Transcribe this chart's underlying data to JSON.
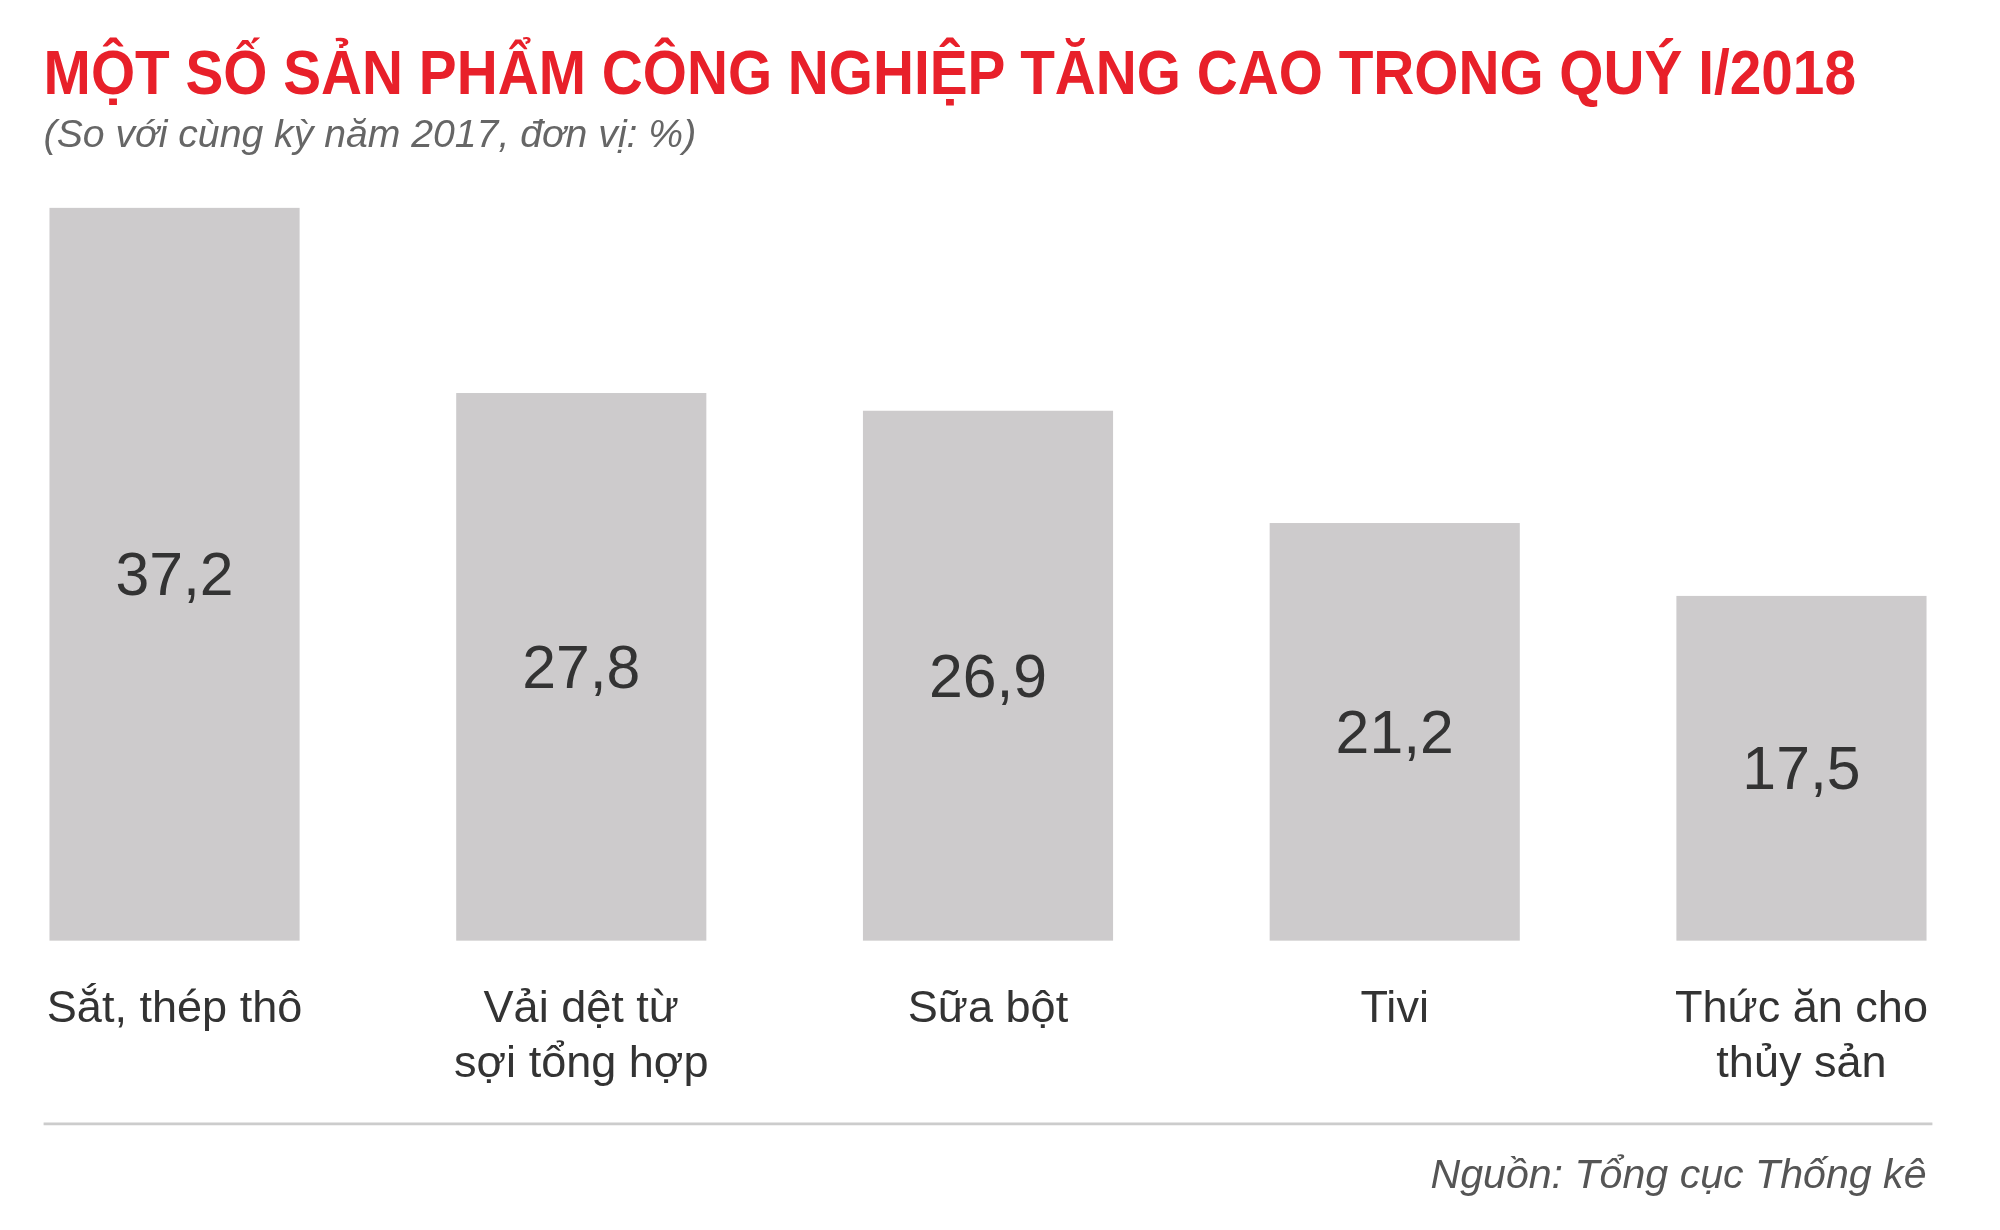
{
  "chart_data": {
    "type": "bar",
    "title": "MỘT SỐ SẢN PHẨM CÔNG NGHIỆP TĂNG CAO TRONG QUÝ I/2018",
    "subtitle": "(So với cùng kỳ năm 2017, đơn vị: %)",
    "categories": [
      "Sắt, thép thô",
      "Vải dệt từ sợi tổng hợp",
      "Sữa bột",
      "Tivi",
      "Thức ăn cho thủy sản"
    ],
    "values": [
      37.2,
      27.8,
      26.9,
      21.2,
      17.5
    ],
    "value_labels": [
      "37,2",
      "27,8",
      "26,9",
      "21,2",
      "17,5"
    ],
    "color": "#cdcbcc",
    "annotations": [
      "Nguồn: Tổng cục Thống kê"
    ]
  }
}
